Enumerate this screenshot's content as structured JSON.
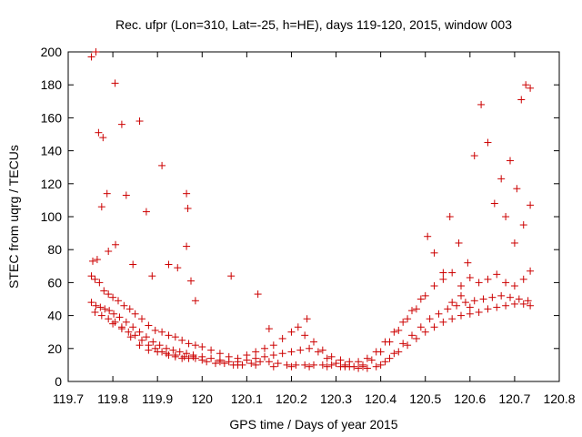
{
  "chart_data": {
    "type": "scatter",
    "title": "Rec. ufpr (Lon=310, Lat=-25, h=HE), days 119-120, 2015, window 003",
    "xlabel": "GPS time / Days of year 2015",
    "ylabel": "STEC from uqrg / TECUs",
    "xlim": [
      119.7,
      120.8
    ],
    "ylim": [
      0,
      200
    ],
    "xticks": [
      "119.7",
      "119.8",
      "119.9",
      "120",
      "120.1",
      "120.2",
      "120.3",
      "120.4",
      "120.5",
      "120.6",
      "120.7",
      "120.8"
    ],
    "yticks": [
      "0",
      "20",
      "40",
      "60",
      "80",
      "100",
      "120",
      "140",
      "160",
      "180",
      "200"
    ],
    "grid": false,
    "legend": "none",
    "marker": "plus",
    "color": "#cc0000",
    "series": [
      {
        "points": [
          [
            119.752,
            197
          ],
          [
            119.762,
            200
          ],
          [
            119.768,
            151
          ],
          [
            119.778,
            148
          ],
          [
            119.787,
            114
          ],
          [
            119.805,
            181
          ],
          [
            119.806,
            83
          ],
          [
            119.82,
            156
          ],
          [
            119.83,
            113
          ],
          [
            119.845,
            71
          ],
          [
            119.86,
            158
          ],
          [
            119.875,
            103
          ],
          [
            119.888,
            64
          ],
          [
            119.91,
            131
          ],
          [
            119.925,
            71
          ],
          [
            119.945,
            69
          ],
          [
            119.965,
            114
          ],
          [
            119.968,
            105
          ],
          [
            119.965,
            82
          ],
          [
            119.975,
            61
          ],
          [
            119.985,
            49
          ],
          [
            120.065,
            64
          ],
          [
            120.125,
            53
          ],
          [
            120.15,
            32
          ],
          [
            120.235,
            38
          ],
          [
            119.775,
            106
          ],
          [
            119.79,
            79
          ],
          [
            119.755,
            73
          ],
          [
            119.765,
            74
          ]
        ]
      },
      {
        "points": [
          [
            119.752,
            64
          ],
          [
            119.76,
            62
          ],
          [
            119.77,
            60
          ],
          [
            119.78,
            55
          ],
          [
            119.79,
            53
          ],
          [
            119.8,
            51
          ],
          [
            119.812,
            49
          ],
          [
            119.825,
            46
          ],
          [
            119.838,
            44
          ],
          [
            119.85,
            41
          ],
          [
            119.865,
            38
          ],
          [
            119.88,
            34
          ],
          [
            119.895,
            31
          ],
          [
            119.91,
            30
          ],
          [
            119.925,
            28
          ],
          [
            119.94,
            27
          ],
          [
            119.955,
            25
          ],
          [
            119.97,
            23
          ],
          [
            119.985,
            22
          ],
          [
            120.0,
            21
          ],
          [
            120.02,
            19
          ],
          [
            120.04,
            17
          ],
          [
            120.06,
            15
          ],
          [
            120.08,
            14
          ],
          [
            120.1,
            16
          ],
          [
            120.12,
            18
          ],
          [
            120.14,
            20
          ],
          [
            120.16,
            22
          ],
          [
            120.18,
            26
          ],
          [
            120.2,
            30
          ],
          [
            120.215,
            33
          ],
          [
            120.23,
            28
          ],
          [
            120.25,
            24
          ],
          [
            120.27,
            19
          ],
          [
            120.29,
            15
          ],
          [
            120.31,
            13
          ],
          [
            120.33,
            12
          ],
          [
            120.35,
            12
          ],
          [
            120.37,
            14
          ],
          [
            120.39,
            18
          ],
          [
            120.41,
            24
          ],
          [
            120.43,
            30
          ],
          [
            120.45,
            36
          ],
          [
            120.47,
            43
          ],
          [
            120.49,
            50
          ],
          [
            120.505,
            88
          ],
          [
            120.52,
            78
          ],
          [
            120.54,
            66
          ],
          [
            120.555,
            100
          ],
          [
            120.575,
            84
          ],
          [
            120.595,
            72
          ],
          [
            120.61,
            137
          ],
          [
            120.625,
            168
          ],
          [
            120.64,
            145
          ],
          [
            120.655,
            108
          ],
          [
            120.67,
            123
          ],
          [
            120.68,
            100
          ],
          [
            120.69,
            134
          ],
          [
            120.705,
            117
          ],
          [
            120.715,
            171
          ],
          [
            120.725,
            180
          ],
          [
            120.735,
            178
          ],
          [
            120.72,
            95
          ],
          [
            120.735,
            107
          ],
          [
            120.7,
            84
          ]
        ]
      },
      {
        "points": [
          [
            119.752,
            48
          ],
          [
            119.762,
            46
          ],
          [
            119.772,
            45
          ],
          [
            119.782,
            44
          ],
          [
            119.792,
            43
          ],
          [
            119.802,
            41
          ],
          [
            119.815,
            39
          ],
          [
            119.83,
            36
          ],
          [
            119.845,
            33
          ],
          [
            119.86,
            30
          ],
          [
            119.875,
            27
          ],
          [
            119.89,
            24
          ],
          [
            119.905,
            22
          ],
          [
            119.92,
            20
          ],
          [
            119.935,
            19
          ],
          [
            119.95,
            18
          ],
          [
            119.965,
            17
          ],
          [
            119.98,
            16
          ],
          [
            120.0,
            15
          ],
          [
            120.02,
            14
          ],
          [
            120.04,
            13
          ],
          [
            120.06,
            12
          ],
          [
            120.08,
            12
          ],
          [
            120.1,
            13
          ],
          [
            120.12,
            14
          ],
          [
            120.14,
            15
          ],
          [
            120.16,
            16
          ],
          [
            120.18,
            17
          ],
          [
            120.2,
            18
          ],
          [
            120.22,
            19
          ],
          [
            120.24,
            20
          ],
          [
            120.26,
            18
          ],
          [
            120.28,
            14
          ],
          [
            120.3,
            11
          ],
          [
            120.32,
            10
          ],
          [
            120.34,
            9
          ],
          [
            120.36,
            10
          ],
          [
            120.38,
            13
          ],
          [
            120.4,
            18
          ],
          [
            120.42,
            24
          ],
          [
            120.44,
            31
          ],
          [
            120.46,
            38
          ],
          [
            120.48,
            44
          ],
          [
            120.5,
            52
          ],
          [
            120.52,
            58
          ],
          [
            120.54,
            62
          ],
          [
            120.56,
            66
          ],
          [
            120.58,
            58
          ],
          [
            120.6,
            63
          ],
          [
            120.62,
            60
          ],
          [
            120.64,
            62
          ],
          [
            120.66,
            65
          ],
          [
            120.68,
            60
          ],
          [
            120.7,
            58
          ],
          [
            120.72,
            62
          ],
          [
            120.735,
            67
          ],
          [
            120.56,
            48
          ],
          [
            120.58,
            52
          ],
          [
            120.6,
            45
          ]
        ]
      },
      {
        "points": [
          [
            119.76,
            42
          ],
          [
            119.775,
            40
          ],
          [
            119.79,
            38
          ],
          [
            119.805,
            36
          ],
          [
            119.82,
            33
          ],
          [
            119.835,
            30
          ],
          [
            119.85,
            28
          ],
          [
            119.865,
            25
          ],
          [
            119.88,
            22
          ],
          [
            119.895,
            20
          ],
          [
            119.91,
            18
          ],
          [
            119.925,
            16
          ],
          [
            119.94,
            15
          ],
          [
            119.955,
            14
          ],
          [
            119.97,
            14
          ],
          [
            119.985,
            14
          ],
          [
            120.01,
            12
          ],
          [
            120.03,
            11
          ],
          [
            120.05,
            11
          ],
          [
            120.07,
            10
          ],
          [
            120.09,
            10
          ],
          [
            120.11,
            11
          ],
          [
            120.13,
            12
          ],
          [
            120.15,
            12
          ],
          [
            120.17,
            11
          ],
          [
            120.19,
            10
          ],
          [
            120.21,
            10
          ],
          [
            120.23,
            10
          ],
          [
            120.25,
            10
          ],
          [
            120.27,
            10
          ],
          [
            120.29,
            10
          ],
          [
            120.31,
            9
          ],
          [
            120.33,
            9
          ],
          [
            120.35,
            8
          ],
          [
            120.37,
            8
          ],
          [
            120.39,
            9
          ],
          [
            120.41,
            12
          ],
          [
            120.43,
            17
          ],
          [
            120.45,
            23
          ],
          [
            120.47,
            28
          ],
          [
            120.49,
            33
          ],
          [
            120.51,
            38
          ],
          [
            120.53,
            41
          ],
          [
            120.55,
            44
          ],
          [
            120.57,
            46
          ],
          [
            120.59,
            48
          ],
          [
            120.61,
            49
          ],
          [
            120.63,
            50
          ],
          [
            120.65,
            51
          ],
          [
            120.67,
            52
          ],
          [
            120.69,
            51
          ],
          [
            120.71,
            50
          ],
          [
            120.73,
            49
          ]
        ]
      },
      {
        "points": [
          [
            119.8,
            35
          ],
          [
            119.82,
            32
          ],
          [
            119.84,
            27
          ],
          [
            119.86,
            22
          ],
          [
            119.88,
            19
          ],
          [
            119.9,
            18
          ],
          [
            119.92,
            17
          ],
          [
            119.94,
            16
          ],
          [
            119.96,
            15
          ],
          [
            119.98,
            15
          ],
          [
            120.0,
            13
          ],
          [
            120.04,
            12
          ],
          [
            120.08,
            10
          ],
          [
            120.12,
            10
          ],
          [
            120.16,
            9
          ],
          [
            120.2,
            9
          ],
          [
            120.24,
            9
          ],
          [
            120.28,
            9
          ],
          [
            120.32,
            9
          ],
          [
            120.36,
            9
          ],
          [
            120.4,
            10
          ],
          [
            120.42,
            14
          ],
          [
            120.44,
            18
          ],
          [
            120.46,
            22
          ],
          [
            120.48,
            26
          ],
          [
            120.5,
            30
          ],
          [
            120.52,
            33
          ],
          [
            120.54,
            36
          ],
          [
            120.56,
            38
          ],
          [
            120.58,
            40
          ],
          [
            120.6,
            41
          ],
          [
            120.62,
            42
          ],
          [
            120.64,
            44
          ],
          [
            120.66,
            45
          ],
          [
            120.68,
            46
          ],
          [
            120.7,
            47
          ],
          [
            120.72,
            47
          ],
          [
            120.735,
            46
          ]
        ]
      }
    ]
  }
}
